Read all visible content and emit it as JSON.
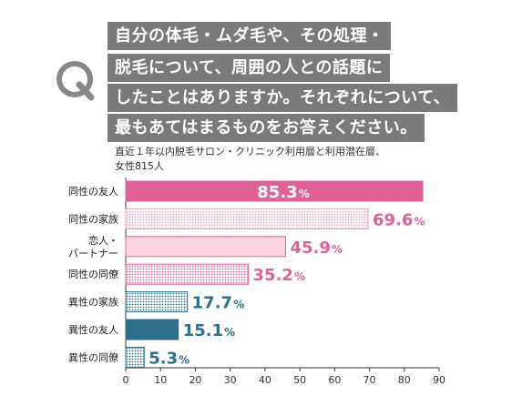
{
  "question": {
    "icon_letter": "Q",
    "lines": [
      "自分の体毛・ムダ毛や、その処理・",
      "脱毛について、周囲の人との話題に",
      "したことはありますか。それぞれについて、",
      "最もあてはまるものをお答えください。"
    ]
  },
  "respondents": {
    "line1": "直近１年以内脱毛サロン・クリニック利用層と利用潜在層、",
    "line2": "女性815人"
  },
  "colors": {
    "dark_pink": "#e0619a",
    "mid_pink": "#f29cc4",
    "light_pink": "#fbd3e3",
    "dark_teal": "#2b6f8d",
    "light_teal": "#e4eef2",
    "question_bg": "#7a7a7a"
  },
  "chart_data": {
    "type": "bar",
    "orientation": "horizontal",
    "categories": [
      "同性の友人",
      "同性の家族",
      "恋人・\nパートナー",
      "同性の同僚",
      "異性の家族",
      "異性の友人",
      "異性の同僚"
    ],
    "values": [
      85.3,
      69.6,
      45.9,
      35.2,
      17.7,
      15.1,
      5.3
    ],
    "value_labels": [
      "85.3",
      "69.6",
      "45.9",
      "35.2",
      "17.7",
      "15.1",
      "5.3"
    ],
    "unit": "%",
    "xlim": [
      0,
      90
    ],
    "xticks": [
      "0",
      "10",
      "20",
      "30",
      "40",
      "50",
      "60",
      "70",
      "80",
      "90"
    ],
    "grid": false,
    "bar_styles": [
      {
        "fill": "solid",
        "color": "#e0619a",
        "label_inside": true
      },
      {
        "fill": "dots",
        "color": "#f29cc4",
        "label_inside": false
      },
      {
        "fill": "solid",
        "color": "#fbd3e3",
        "label_inside": false
      },
      {
        "fill": "dots",
        "color": "#e0619a",
        "label_inside": false
      },
      {
        "fill": "dots",
        "color": "#2b6f8d",
        "label_inside": false
      },
      {
        "fill": "solid",
        "color": "#2b6f8d",
        "label_inside": false
      },
      {
        "fill": "dots",
        "color": "#2b6f8d",
        "label_inside": false
      }
    ],
    "label_colors": [
      "#ffffff",
      "#e0619a",
      "#e0619a",
      "#e0619a",
      "#2b6f8d",
      "#2b6f8d",
      "#2b6f8d"
    ]
  }
}
